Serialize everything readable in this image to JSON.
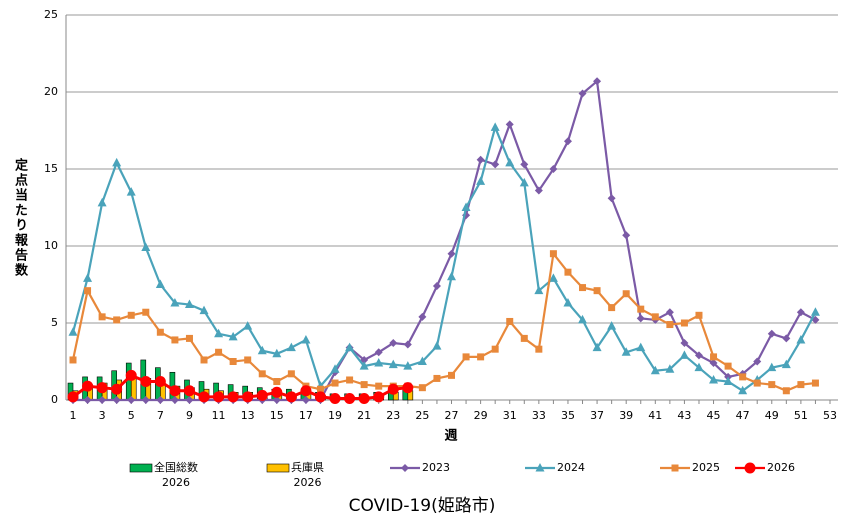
{
  "chart_data": {
    "type": "line",
    "title": "COVID-19(姫路市)",
    "ylabel": "定点当たり報告数",
    "xlabel": "週",
    "categories": [
      1,
      null,
      3,
      null,
      5,
      null,
      7,
      null,
      9,
      null,
      11,
      null,
      13,
      null,
      15,
      null,
      17,
      null,
      19,
      null,
      21,
      null,
      23,
      null,
      25,
      null,
      27,
      null,
      29,
      null,
      31,
      null,
      33,
      null,
      35,
      null,
      37,
      null,
      39,
      null,
      41,
      null,
      43,
      null,
      45,
      null,
      47,
      null,
      49,
      null,
      51,
      null,
      53
    ],
    "ylim": [
      0,
      25
    ],
    "yticks": [
      0,
      5,
      10,
      15,
      20,
      25
    ],
    "grid": true,
    "bar_series": [
      {
        "name": "全国総数\n2026",
        "color": "#00b050",
        "values": [
          1.1,
          1.5,
          1.5,
          1.9,
          2.4,
          2.6,
          2.1,
          1.8,
          1.3,
          1.2,
          1.1,
          1.0,
          0.9,
          0.8,
          0.7,
          0.7,
          0.6,
          0.5,
          0.4,
          0.4,
          0.4,
          0.5,
          0.6,
          0.8,
          null,
          null,
          null,
          null,
          null,
          null,
          null,
          null,
          null,
          null,
          null,
          null,
          null,
          null,
          null,
          null,
          null,
          null,
          null,
          null,
          null,
          null,
          null,
          null,
          null,
          null,
          null,
          null,
          null
        ]
      },
      {
        "name": "兵庫県\n2026",
        "color": "#ffc000",
        "values": [
          0.6,
          1.0,
          1.1,
          1.3,
          1.4,
          1.4,
          1.1,
          0.9,
          0.8,
          0.7,
          0.6,
          0.5,
          0.5,
          0.4,
          0.4,
          0.3,
          0.4,
          0.3,
          0.2,
          0.2,
          0.2,
          0.3,
          0.5,
          0.6,
          null,
          null,
          null,
          null,
          null,
          null,
          null,
          null,
          null,
          null,
          null,
          null,
          null,
          null,
          null,
          null,
          null,
          null,
          null,
          null,
          null,
          null,
          null,
          null,
          null,
          null,
          null,
          null,
          null
        ]
      }
    ],
    "series": [
      {
        "name": "2023",
        "color": "#7b5aa6",
        "marker": "diamond",
        "values": [
          0,
          0,
          0,
          0,
          0,
          0,
          0,
          0,
          0,
          0,
          0,
          0,
          0,
          0,
          0,
          0,
          0,
          0,
          1.8,
          3.4,
          2.6,
          3.1,
          3.7,
          3.6,
          5.4,
          7.4,
          9.5,
          12.0,
          15.6,
          15.3,
          17.9,
          15.3,
          13.6,
          15.0,
          16.8,
          19.9,
          20.7,
          13.1,
          10.7,
          5.3,
          5.2,
          5.7,
          3.7,
          2.9,
          2.4,
          1.5,
          1.7,
          2.5,
          4.3,
          4.0,
          5.7,
          5.2,
          null
        ]
      },
      {
        "name": "2024",
        "color": "#4aa3ba",
        "marker": "triangle",
        "values": [
          4.4,
          7.9,
          12.8,
          15.4,
          13.5,
          9.9,
          7.5,
          6.3,
          6.2,
          5.8,
          4.3,
          4.1,
          4.8,
          3.2,
          3.0,
          3.4,
          3.9,
          0.9,
          2.0,
          3.4,
          2.2,
          2.4,
          2.3,
          2.2,
          2.5,
          3.5,
          8.0,
          12.5,
          14.2,
          17.7,
          15.4,
          14.1,
          7.1,
          7.9,
          6.3,
          5.2,
          3.4,
          4.8,
          3.1,
          3.4,
          1.9,
          2.0,
          2.9,
          2.1,
          1.3,
          1.2,
          0.6,
          1.3,
          2.1,
          2.3,
          3.9,
          5.7,
          null
        ]
      },
      {
        "name": "2025",
        "color": "#e8883a",
        "marker": "square",
        "values": [
          2.6,
          7.1,
          5.4,
          5.2,
          5.5,
          5.7,
          4.4,
          3.9,
          4.0,
          2.6,
          3.1,
          2.5,
          2.6,
          1.7,
          1.2,
          1.7,
          0.9,
          0.7,
          1.1,
          1.3,
          1.0,
          0.9,
          0.9,
          0.9,
          0.8,
          1.4,
          1.6,
          2.8,
          2.8,
          3.3,
          5.1,
          4.0,
          3.3,
          9.5,
          8.3,
          7.3,
          7.1,
          6.0,
          6.9,
          5.9,
          5.4,
          4.9,
          5.0,
          5.5,
          2.8,
          2.2,
          1.5,
          1.1,
          1.0,
          0.6,
          1.0,
          1.1,
          null
        ]
      },
      {
        "name": "2026",
        "color": "#ff0000",
        "marker": "circle",
        "values": [
          0.2,
          0.9,
          0.8,
          0.7,
          1.6,
          1.2,
          1.2,
          0.6,
          0.6,
          0.2,
          0.2,
          0.2,
          0.2,
          0.3,
          0.5,
          0.2,
          0.6,
          0.2,
          0.1,
          0.1,
          0.1,
          0.2,
          0.7,
          0.8,
          null,
          null,
          null,
          null,
          null,
          null,
          null,
          null,
          null,
          null,
          null,
          null,
          null,
          null,
          null,
          null,
          null,
          null,
          null,
          null,
          null,
          null,
          null,
          null,
          null,
          null,
          null,
          null,
          null
        ]
      }
    ]
  }
}
